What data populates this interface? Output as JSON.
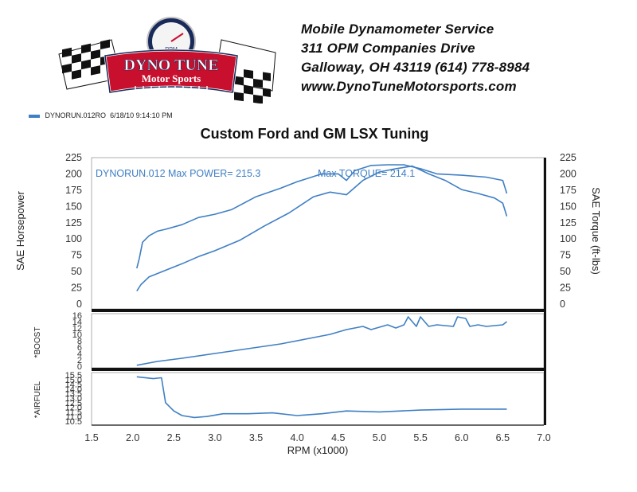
{
  "logo": {
    "line1": "DYNO TUNE",
    "line2": "Motor Sports",
    "gauge_label": "RPM"
  },
  "company": {
    "name": "Mobile Dynamometer Service",
    "address1": "311 OPM Companies Drive",
    "address2": "Galloway, OH  43119   (614)  778-8984",
    "website": "www.DynoTuneMotorsports.com"
  },
  "run_legend": {
    "name": "DYNORUN.012RO",
    "datetime": "6/18/10 9:14:10 PM"
  },
  "colors": {
    "series": "#3f7fc4",
    "frame": "#111111"
  },
  "chart_data": [
    {
      "type": "line",
      "title": "Custom Ford and GM LSX Tuning",
      "xlabel": "RPM (x1000)",
      "ylabel": "SAE Horsepower",
      "ylabel_right": "SAE Torque (ft-lbs)",
      "xlim": [
        1.5,
        7.0
      ],
      "ylim": [
        0,
        225
      ],
      "x_ticks": [
        "1.5",
        "2.0",
        "2.5",
        "3.0",
        "3.5",
        "4.0",
        "4.5",
        "5.0",
        "5.5",
        "6.0",
        "6.5",
        "7.0"
      ],
      "y_ticks": [
        "0",
        "25",
        "50",
        "75",
        "100",
        "125",
        "150",
        "175",
        "200",
        "225"
      ],
      "y_ticks_right": [
        "0",
        "25",
        "50",
        "75",
        "100",
        "125",
        "150",
        "175",
        "200",
        "225"
      ],
      "annotation_power": "DYNORUN.012  Max POWER= 215.3",
      "annotation_torque": "Max TORQUE= 214.1",
      "series": [
        {
          "name": "Torque",
          "x": [
            2.05,
            2.08,
            2.12,
            2.2,
            2.3,
            2.4,
            2.6,
            2.8,
            3.0,
            3.2,
            3.5,
            3.8,
            4.0,
            4.3,
            4.5,
            4.6,
            4.7,
            4.9,
            5.1,
            5.3,
            5.5,
            5.7,
            6.0,
            6.3,
            6.5,
            6.55
          ],
          "y": [
            55,
            70,
            95,
            105,
            112,
            115,
            122,
            133,
            138,
            145,
            165,
            178,
            188,
            200,
            200,
            190,
            205,
            213,
            214,
            214,
            208,
            200,
            198,
            195,
            190,
            170
          ]
        },
        {
          "name": "Horsepower",
          "x": [
            2.05,
            2.1,
            2.2,
            2.4,
            2.6,
            2.8,
            3.0,
            3.3,
            3.6,
            3.9,
            4.2,
            4.4,
            4.6,
            4.8,
            5.0,
            5.2,
            5.4,
            5.6,
            5.8,
            6.0,
            6.2,
            6.4,
            6.5,
            6.55
          ],
          "y": [
            20,
            30,
            42,
            52,
            62,
            73,
            82,
            98,
            120,
            140,
            165,
            172,
            168,
            190,
            203,
            208,
            212,
            200,
            190,
            176,
            170,
            163,
            155,
            135
          ]
        }
      ]
    },
    {
      "type": "line",
      "ylabel": "*BOOST",
      "xlim": [
        1.5,
        7.0
      ],
      "ylim": [
        0,
        16
      ],
      "y_ticks": [
        "0",
        "2",
        "4",
        "6",
        "8",
        "10",
        "12",
        "14",
        "16"
      ],
      "series": [
        {
          "name": "Boost",
          "x": [
            2.05,
            2.3,
            2.6,
            3.0,
            3.4,
            3.8,
            4.1,
            4.4,
            4.6,
            4.8,
            4.9,
            5.1,
            5.2,
            5.3,
            5.35,
            5.45,
            5.5,
            5.6,
            5.7,
            5.9,
            5.95,
            6.05,
            6.1,
            6.2,
            6.3,
            6.5,
            6.55
          ],
          "y": [
            0.3,
            1.5,
            2.5,
            4,
            5.5,
            7,
            8.5,
            10,
            11.5,
            12.5,
            11.5,
            13,
            12,
            13,
            15.5,
            12.5,
            15.5,
            12.5,
            13,
            12.5,
            15.5,
            15,
            12.5,
            13,
            12.5,
            13,
            14
          ]
        }
      ]
    },
    {
      "type": "line",
      "ylabel": "*AIRFUEL",
      "xlim": [
        1.5,
        7.0
      ],
      "ylim": [
        10.5,
        15.5
      ],
      "y_ticks": [
        "10.5",
        "11.0",
        "11.5",
        "12.0",
        "12.5",
        "13.0",
        "13.5",
        "14.0",
        "14.5",
        "15.0",
        "15.5"
      ],
      "series": [
        {
          "name": "Air/Fuel",
          "x": [
            2.05,
            2.25,
            2.35,
            2.4,
            2.5,
            2.6,
            2.75,
            2.9,
            3.1,
            3.4,
            3.7,
            4.0,
            4.3,
            4.6,
            5.0,
            5.5,
            6.0,
            6.5,
            6.55
          ],
          "y": [
            15.3,
            15.1,
            15.2,
            12.5,
            11.6,
            11.1,
            10.9,
            11.0,
            11.3,
            11.3,
            11.4,
            11.1,
            11.3,
            11.6,
            11.5,
            11.7,
            11.8,
            11.8,
            11.8
          ]
        }
      ]
    }
  ]
}
